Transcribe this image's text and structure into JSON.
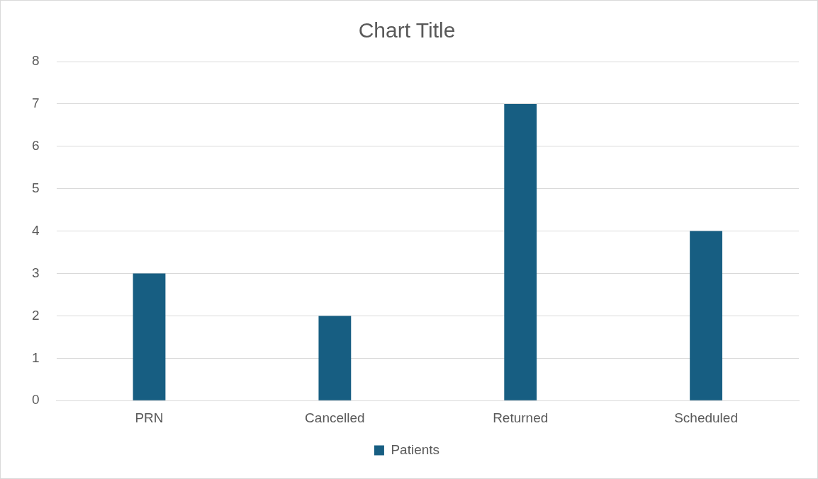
{
  "chart_data": {
    "type": "bar",
    "title": "Chart Title",
    "categories": [
      "PRN",
      "Cancelled",
      "Returned",
      "Scheduled"
    ],
    "series": [
      {
        "name": "Patients",
        "color": "#175e82",
        "values": [
          3,
          2,
          7,
          4
        ]
      }
    ],
    "ylim": [
      0,
      8
    ],
    "yticks": [
      0,
      1,
      2,
      3,
      4,
      5,
      6,
      7,
      8
    ],
    "grid": "y",
    "legend": "bottom"
  }
}
